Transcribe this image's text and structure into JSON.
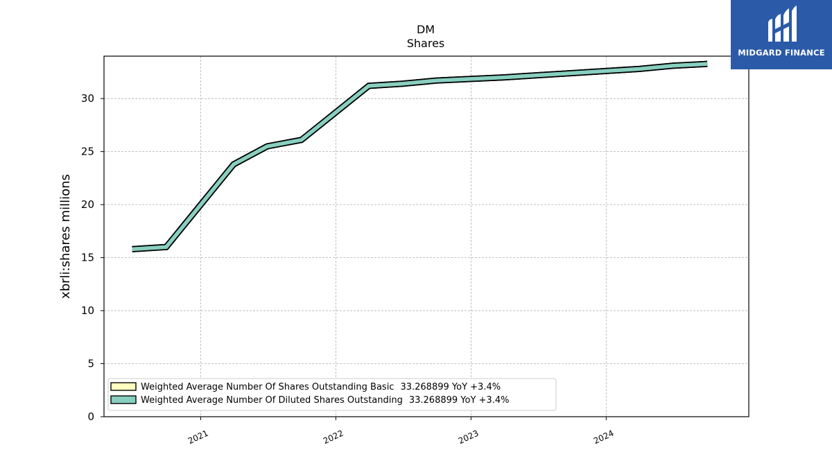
{
  "chart_data": {
    "type": "line",
    "title": "DM",
    "subtitle": "Shares",
    "ylabel": "xbrli:shares millions",
    "xlabel": "",
    "ylim": [
      0,
      34
    ],
    "y_ticks": [
      0,
      5,
      10,
      15,
      20,
      25,
      30
    ],
    "x_tick_labels": [
      "2021",
      "2022",
      "2023",
      "2024"
    ],
    "x_tick_dates": [
      "2021-01-01",
      "2022-01-01",
      "2023-01-01",
      "2024-01-01"
    ],
    "xlim": [
      "2020-04-15",
      "2025-01-20"
    ],
    "grid": true,
    "legend_position": "lower-left",
    "x": [
      "2020-06-30",
      "2020-09-30",
      "2021-03-31",
      "2021-06-30",
      "2021-09-30",
      "2022-03-31",
      "2022-06-30",
      "2022-09-30",
      "2023-03-31",
      "2023-06-30",
      "2023-09-30",
      "2024-03-31",
      "2024-06-30",
      "2024-09-30"
    ],
    "series": [
      {
        "name": "Weighted Average Number Of Shares Outstanding Basic",
        "legend_value": "33.268899 YoY +3.4%",
        "color": "#ffffbf",
        "values": [
          15.8,
          16.0,
          23.8,
          25.5,
          26.1,
          31.2,
          31.4,
          31.7,
          32.0,
          32.2,
          32.4,
          32.8,
          33.1,
          33.27
        ]
      },
      {
        "name": "Weighted Average Number Of Diluted Shares Outstanding",
        "legend_value": "33.268899 YoY +3.4%",
        "color": "#88cfc0",
        "values": [
          15.8,
          16.0,
          23.8,
          25.5,
          26.1,
          31.2,
          31.4,
          31.7,
          32.0,
          32.2,
          32.4,
          32.8,
          33.1,
          33.27
        ]
      }
    ]
  },
  "logo": {
    "text": "MIDGARD FINANCE"
  }
}
